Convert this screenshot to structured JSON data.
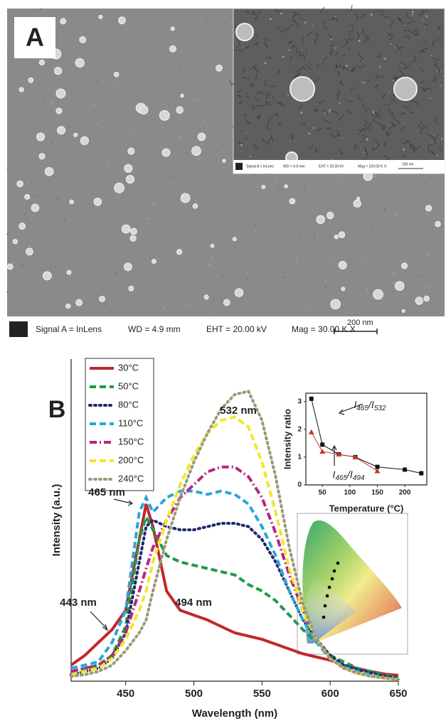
{
  "panel_a": {
    "label": "A",
    "info_bar": {
      "signal": "Signal A = InLens",
      "wd": "WD = 4.9 mm",
      "eht": "EHT = 20.00 kV",
      "mag": "Mag = 30.00 K X",
      "scale": "200 nm"
    },
    "inset_info_bar": {
      "signal": "Signal A = InLens",
      "wd": "WD = 4.9 mm",
      "eht": "EHT = 20.00 kV",
      "mag": "Mag = 150.00 K X",
      "scale": "100 nm"
    }
  },
  "chart_data": [
    {
      "type": "line",
      "panel_label": "B",
      "x_label": "Wavelength (nm)",
      "y_label": "Intensity (a.u.)",
      "x": [
        410,
        420,
        430,
        440,
        450,
        460,
        465,
        470,
        480,
        490,
        500,
        510,
        520,
        530,
        540,
        550,
        560,
        570,
        580,
        590,
        600,
        610,
        620,
        630,
        640,
        650
      ],
      "series": [
        {
          "name": "30°C",
          "color": "#c0272d",
          "linestyle": "solid",
          "values": [
            5,
            8,
            12,
            16,
            22,
            44,
            55,
            48,
            28,
            22,
            20.5,
            19,
            17,
            15,
            14,
            13,
            11.5,
            10,
            8.5,
            7.5,
            6.5,
            5,
            4,
            3,
            2.2,
            1.8
          ]
        },
        {
          "name": "50°C",
          "color": "#1e9a4a",
          "linestyle": "dashed",
          "values": [
            3,
            4,
            5,
            8,
            17,
            44,
            51,
            47,
            39,
            37,
            36,
            35,
            34,
            33,
            30,
            28,
            25,
            20.5,
            16,
            12,
            8,
            6,
            4,
            3,
            2,
            1
          ]
        },
        {
          "name": "80°C",
          "color": "#1d2a6b",
          "linestyle": "dotted",
          "values": [
            2,
            3,
            4,
            7,
            15,
            37,
            48,
            50,
            48,
            47,
            47,
            48,
            49,
            49,
            48,
            44,
            37,
            28,
            19,
            13,
            8,
            5,
            3.5,
            2.5,
            1.5,
            1
          ]
        },
        {
          "name": "110°C",
          "color": "#27a7d8",
          "linestyle": "dashed",
          "values": [
            4,
            5,
            6,
            12,
            22,
            52.5,
            57,
            52.5,
            57,
            59,
            59,
            58,
            59,
            58,
            55,
            48,
            39,
            28,
            19,
            12,
            7,
            4.5,
            3,
            2,
            1,
            0.7
          ]
        },
        {
          "name": "150°C",
          "color": "#b5267f",
          "linestyle": "dashdot",
          "values": [
            3,
            4,
            5,
            8,
            15,
            28,
            35,
            41.5,
            50,
            57,
            61,
            65,
            66.5,
            66.5,
            63.5,
            57,
            46,
            33,
            22,
            13,
            7,
            4,
            2.5,
            1.5,
            1,
            0.5
          ]
        },
        {
          "name": "200°C",
          "color": "#f4e62c",
          "linestyle": "dashed",
          "values": [
            2,
            3,
            4,
            7,
            13,
            22,
            28,
            37,
            50,
            61,
            70,
            77,
            81,
            82,
            79,
            68,
            52.5,
            35,
            22,
            13,
            7,
            4,
            2.5,
            1.5,
            1,
            0.5
          ]
        },
        {
          "name": "240°C",
          "color": "#9a9a7a",
          "linestyle": "dotted",
          "values": [
            1.5,
            2,
            3,
            5,
            9.5,
            15,
            19,
            28,
            44,
            57,
            68,
            77,
            84.5,
            89,
            90,
            81,
            63.5,
            41.5,
            24,
            13,
            7,
            4,
            2.5,
            1.5,
            1,
            0.5
          ]
        }
      ],
      "xlim": [
        410,
        650
      ],
      "xticks": [
        450,
        500,
        550,
        600,
        650
      ],
      "ylim": [
        0,
        100
      ],
      "annotations": [
        "532 nm",
        "465 nm",
        "443 nm",
        "494 nm"
      ]
    },
    {
      "type": "line",
      "x_label": "Temperature (°C)",
      "y_label": "Intensity ratio",
      "series": [
        {
          "name": "I465/I532",
          "color": "#111111",
          "marker": "square",
          "x": [
            30,
            50,
            80,
            110,
            150,
            200,
            230
          ],
          "values": [
            3.1,
            1.45,
            1.1,
            1.0,
            0.65,
            0.55,
            0.42
          ]
        },
        {
          "name": "I465/I494",
          "color": "#c0392b",
          "marker": "triangle",
          "x": [
            30,
            50,
            80,
            110,
            150
          ],
          "values": [
            1.9,
            1.2,
            1.1,
            1.0,
            0.5
          ]
        }
      ],
      "xlim": [
        20,
        240
      ],
      "xticks": [
        50,
        100,
        150,
        200
      ],
      "ylim": [
        0,
        3.3
      ],
      "yticks": [
        0,
        1,
        2,
        3
      ]
    }
  ]
}
